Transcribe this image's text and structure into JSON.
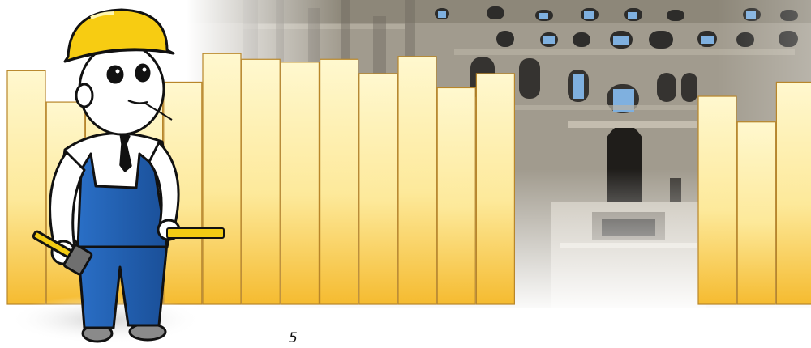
{
  "page_number": "5",
  "colors": {
    "plank_top": "#fff7c9",
    "plank_bottom": "#f6be36",
    "plank_edge": "#b8862a",
    "helmet": "#f7cc12",
    "overalls": "#1f5fb0",
    "ruins_stone": "#8f8a7e",
    "sky": "#7fb0df"
  },
  "fence": {
    "planks_left": [
      {
        "height": 0.82
      },
      {
        "height": 0.71
      },
      {
        "height": 0.83
      },
      {
        "height": 0.72
      },
      {
        "height": 0.78
      },
      {
        "height": 0.88
      },
      {
        "height": 0.86
      },
      {
        "height": 0.85
      },
      {
        "height": 0.86
      },
      {
        "height": 0.81
      },
      {
        "height": 0.87
      },
      {
        "height": 0.76
      },
      {
        "height": 0.81
      }
    ],
    "planks_right": [
      {
        "height": 0.73
      },
      {
        "height": 0.64
      },
      {
        "height": 0.78
      }
    ]
  },
  "figure": {
    "icon": "construction-worker-with-hammer"
  }
}
